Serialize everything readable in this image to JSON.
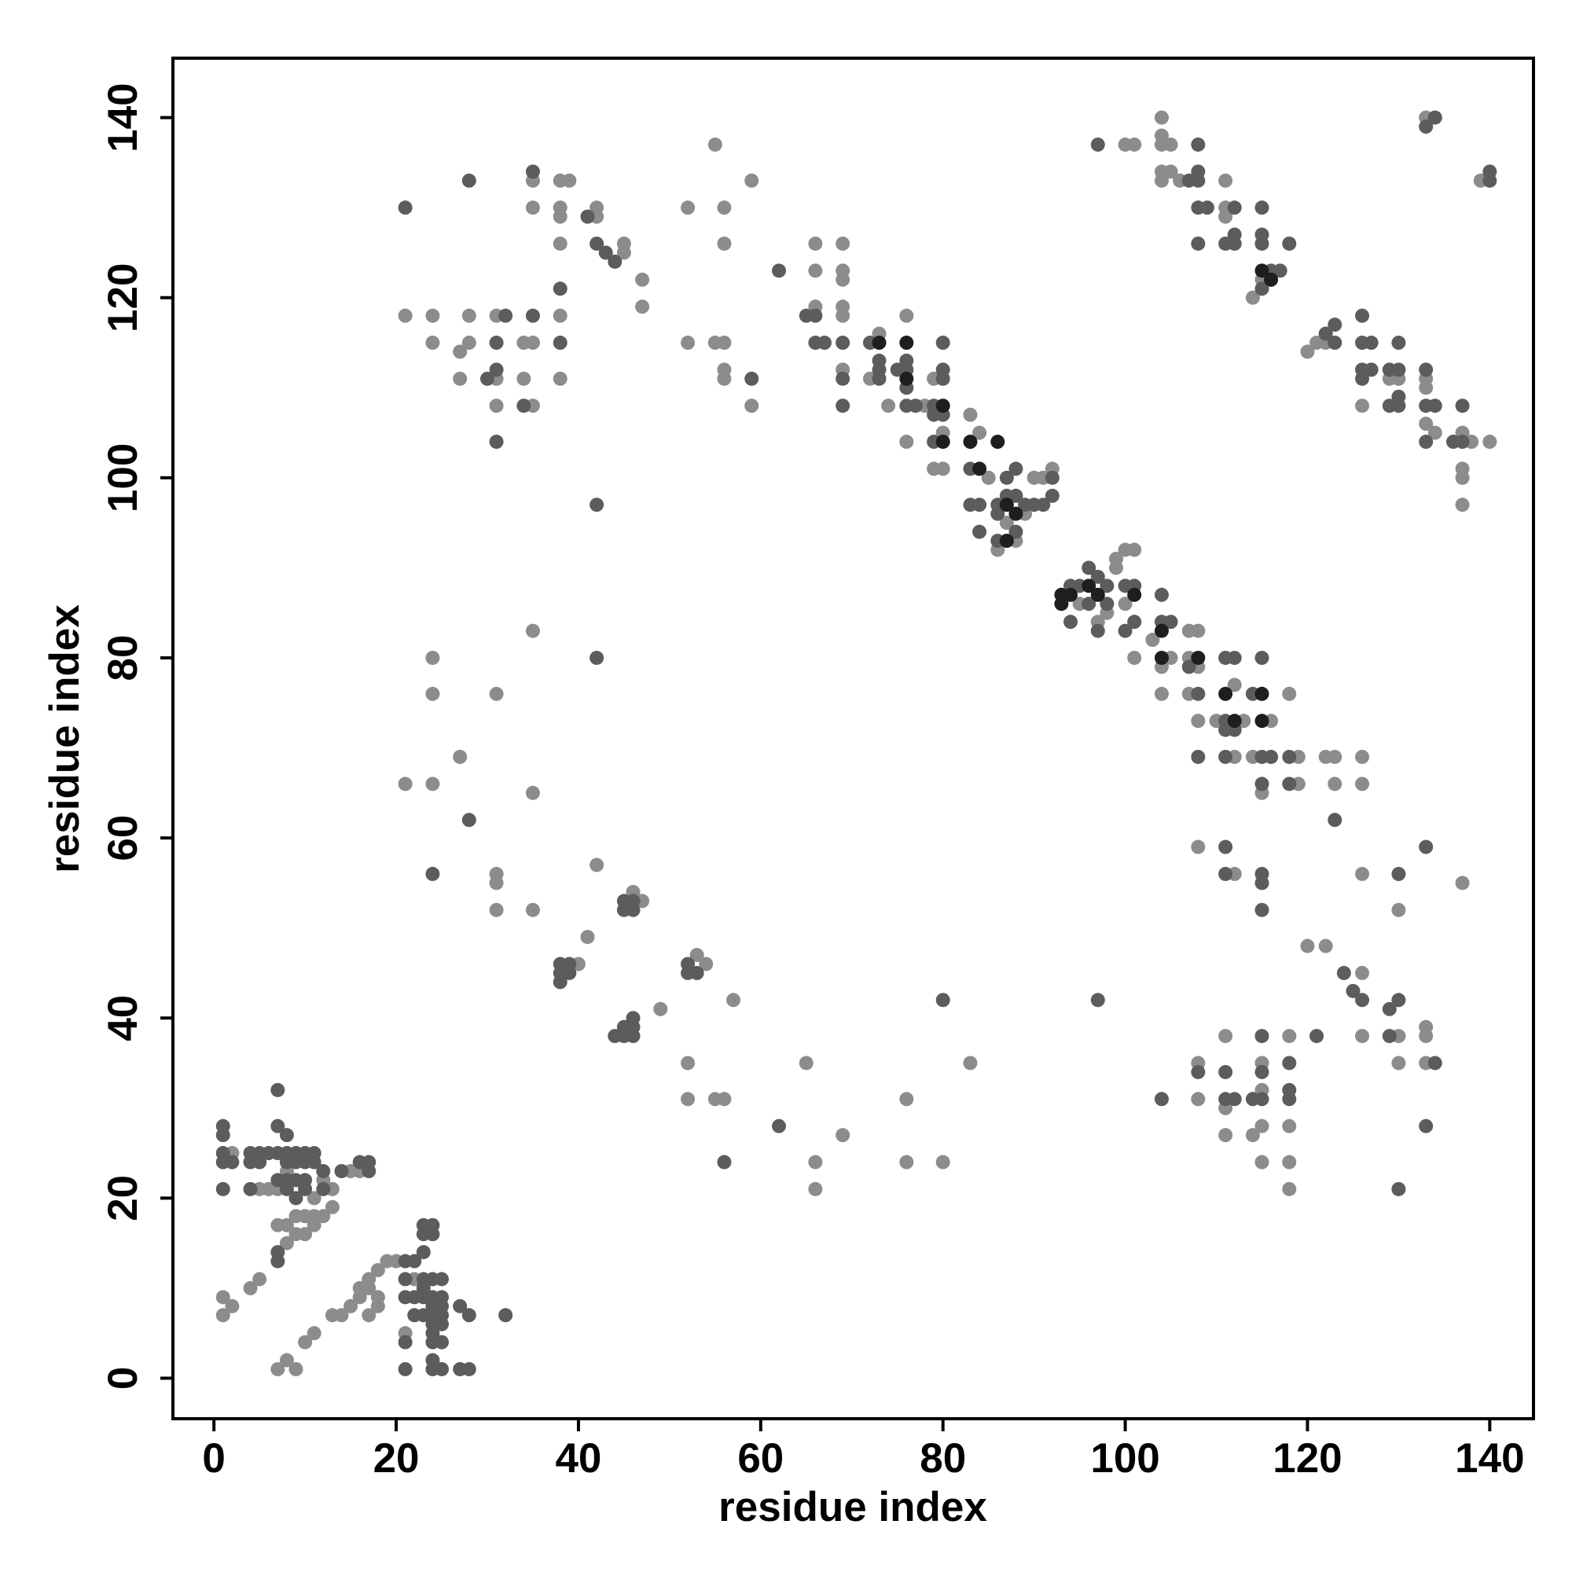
{
  "chart_data": {
    "type": "scatter",
    "xlabel": "residue index",
    "ylabel": "residue index",
    "xlim": [
      -4.5,
      144.8
    ],
    "ylim": [
      -4.5,
      146.6
    ],
    "xticks": [
      0,
      20,
      40,
      60,
      80,
      100,
      120,
      140
    ],
    "yticks": [
      0,
      20,
      40,
      60,
      80,
      100,
      120,
      140
    ],
    "series": [
      {
        "color": "#8c8c8c",
        "x": [
          1,
          1,
          2,
          4,
          5,
          7,
          8,
          9,
          10,
          11,
          13,
          14,
          15,
          16,
          17,
          17,
          18,
          18,
          19,
          20,
          18,
          17,
          16,
          7,
          8,
          8,
          9,
          10,
          11,
          12,
          13,
          9,
          10,
          11,
          7,
          8,
          11,
          12,
          15,
          16,
          22,
          21,
          6,
          5,
          2,
          13,
          40,
          41,
          42,
          46,
          47,
          53,
          54,
          49,
          57,
          52,
          52,
          55,
          56,
          65,
          66,
          66,
          69,
          76,
          76,
          80,
          83,
          21,
          24,
          27,
          24,
          24,
          31,
          35,
          35,
          31,
          31,
          31,
          35,
          21,
          24,
          24,
          27,
          27,
          28,
          28,
          31,
          31,
          31,
          34,
          34,
          35,
          35,
          35,
          35,
          38,
          38,
          38,
          38,
          39,
          38,
          38,
          42,
          42,
          45,
          45,
          47,
          47,
          52,
          52,
          55,
          55,
          56,
          56,
          56,
          56,
          56,
          59,
          59,
          69,
          66,
          66,
          66,
          69,
          69,
          69,
          69,
          69,
          72,
          73,
          74,
          76,
          76,
          78,
          79,
          80,
          79,
          80,
          83,
          84,
          85,
          86,
          87,
          88,
          89,
          90,
          91,
          92,
          95,
          98,
          99,
          100,
          101,
          99,
          100,
          97,
          101,
          103,
          104,
          104,
          105,
          107,
          107,
          108,
          108,
          107,
          108,
          110,
          112,
          112,
          113,
          116,
          114,
          115,
          118,
          119,
          119,
          122,
          123,
          123,
          126,
          126,
          126,
          120,
          122,
          100,
          101,
          104,
          104,
          104,
          104,
          105,
          104,
          105,
          106,
          111,
          111,
          111,
          114,
          115,
          120,
          121,
          122,
          126,
          129,
          130,
          133,
          133,
          133,
          134,
          137,
          137,
          137,
          138,
          140,
          139,
          133,
          137,
          108,
          112,
          108,
          108,
          111,
          111,
          111,
          114,
          115,
          115,
          115,
          118,
          118,
          118,
          118,
          126,
          126,
          130,
          130,
          130,
          133,
          133,
          133,
          137,
          115
        ],
        "values": [
          9,
          7,
          8,
          10,
          11,
          1,
          2,
          1,
          4,
          5,
          7,
          7,
          8,
          9,
          10,
          11,
          9,
          12,
          13,
          13,
          8,
          7,
          10,
          17,
          15,
          17,
          18,
          18,
          18,
          18,
          19,
          16,
          16,
          17,
          21,
          23,
          20,
          22,
          23,
          23,
          11,
          5,
          21,
          21,
          25,
          21,
          46,
          49,
          57,
          54,
          53,
          47,
          46,
          41,
          42,
          35,
          31,
          31,
          31,
          35,
          24,
          21,
          27,
          31,
          24,
          24,
          35,
          66,
          66,
          69,
          80,
          76,
          76,
          83,
          65,
          56,
          55,
          52,
          52,
          118,
          118,
          115,
          114,
          111,
          118,
          115,
          118,
          111,
          108,
          115,
          111,
          108,
          115,
          133,
          130,
          133,
          130,
          129,
          126,
          133,
          118,
          111,
          130,
          129,
          126,
          125,
          122,
          119,
          130,
          115,
          137,
          115,
          130,
          126,
          115,
          112,
          111,
          133,
          108,
          126,
          126,
          123,
          119,
          123,
          122,
          119,
          118,
          112,
          111,
          116,
          108,
          118,
          104,
          108,
          111,
          105,
          101,
          101,
          107,
          105,
          100,
          92,
          95,
          93,
          96,
          100,
          100,
          101,
          86,
          85,
          91,
          92,
          92,
          90,
          86,
          84,
          80,
          82,
          79,
          76,
          80,
          83,
          80,
          83,
          79,
          76,
          73,
          73,
          77,
          69,
          73,
          73,
          69,
          65,
          76,
          69,
          66,
          69,
          69,
          66,
          69,
          66,
          56,
          48,
          48,
          137,
          137,
          140,
          138,
          137,
          134,
          134,
          133,
          137,
          133,
          133,
          130,
          129,
          120,
          122,
          114,
          115,
          115,
          108,
          111,
          111,
          111,
          110,
          106,
          105,
          105,
          101,
          100,
          104,
          104,
          133,
          140,
          97,
          59,
          56,
          35,
          31,
          38,
          30,
          27,
          27,
          28,
          35,
          24,
          38,
          28,
          24,
          21,
          45,
          38,
          38,
          35,
          52,
          39,
          38,
          35,
          55,
          32
        ]
      },
      {
        "color": "#5c5c5c",
        "x": [
          1,
          1,
          1,
          1,
          2,
          1,
          4,
          4,
          5,
          5,
          6,
          7,
          8,
          9,
          10,
          8,
          9,
          10,
          7,
          8,
          7,
          8,
          9,
          10,
          8,
          9,
          10,
          11,
          11,
          12,
          12,
          14,
          16,
          17,
          17,
          7,
          4,
          7,
          7,
          21,
          22,
          23,
          24,
          23,
          24,
          23,
          22,
          23,
          24,
          25,
          23,
          24,
          25,
          22,
          23,
          24,
          25,
          24,
          25,
          24,
          25,
          24,
          21,
          21,
          24,
          24,
          25,
          27,
          28,
          27,
          28,
          32,
          21,
          24,
          25,
          23,
          21,
          38,
          38,
          39,
          39,
          38,
          45,
          45,
          46,
          46,
          52,
          52,
          53,
          44,
          45,
          46,
          46,
          45,
          46,
          42,
          42,
          28,
          24,
          62,
          56,
          80,
          97,
          21,
          28,
          35,
          32,
          31,
          31,
          31,
          35,
          38,
          38,
          41,
          42,
          43,
          44,
          59,
          34,
          30,
          65,
          66,
          66,
          69,
          69,
          69,
          72,
          73,
          73,
          73,
          75,
          76,
          76,
          76,
          77,
          76,
          79,
          79,
          80,
          80,
          80,
          80,
          79,
          84,
          83,
          86,
          86,
          87,
          88,
          88,
          87,
          89,
          90,
          91,
          92,
          92,
          86,
          88,
          84,
          83,
          94,
          95,
          94,
          96,
          97,
          98,
          98,
          97,
          96,
          100,
          101,
          100,
          101,
          104,
          104,
          105,
          107,
          111,
          112,
          112,
          111,
          111,
          114,
          115,
          111,
          108,
          115,
          116,
          115,
          118,
          118,
          123,
          67,
          62,
          108,
          97,
          108,
          108,
          107,
          108,
          108,
          109,
          108,
          111,
          112,
          112,
          112,
          115,
          115,
          115,
          118,
          116,
          117,
          115,
          123,
          123,
          122,
          126,
          126,
          127,
          126,
          126,
          127,
          129,
          129,
          130,
          130,
          130,
          130,
          133,
          133,
          134,
          136,
          137,
          133,
          140,
          140,
          134,
          133,
          137,
          104,
          108,
          111,
          111,
          112,
          115,
          115,
          114,
          115,
          118,
          118,
          118,
          121,
          124,
          125,
          126,
          129,
          129,
          130,
          133,
          134,
          130,
          111,
          115,
          115,
          111,
          130,
          133,
          115
        ],
        "values": [
          28,
          27,
          25,
          24,
          24,
          21,
          24,
          25,
          24,
          25,
          25,
          25,
          25,
          25,
          25,
          24,
          24,
          24,
          28,
          27,
          22,
          22,
          22,
          22,
          21,
          20,
          21,
          25,
          24,
          23,
          21,
          23,
          24,
          24,
          23,
          32,
          21,
          14,
          13,
          13,
          13,
          17,
          17,
          16,
          16,
          14,
          9,
          9,
          9,
          9,
          11,
          11,
          11,
          7,
          7,
          7,
          7,
          6,
          6,
          5,
          4,
          4,
          4,
          1,
          2,
          1,
          1,
          1,
          1,
          8,
          7,
          7,
          9,
          8,
          8,
          10,
          11,
          46,
          45,
          45,
          46,
          44,
          53,
          52,
          52,
          53,
          46,
          45,
          45,
          38,
          39,
          39,
          38,
          38,
          40,
          97,
          80,
          62,
          56,
          28,
          24,
          42,
          42,
          130,
          133,
          134,
          118,
          115,
          112,
          104,
          118,
          121,
          115,
          129,
          126,
          125,
          124,
          111,
          108,
          111,
          118,
          118,
          115,
          115,
          111,
          108,
          115,
          113,
          112,
          111,
          112,
          113,
          110,
          108,
          108,
          112,
          108,
          107,
          112,
          111,
          115,
          107,
          104,
          97,
          97,
          97,
          96,
          100,
          101,
          98,
          98,
          97,
          97,
          97,
          98,
          100,
          93,
          94,
          94,
          101,
          88,
          88,
          84,
          86,
          89,
          88,
          86,
          83,
          90,
          88,
          84,
          83,
          88,
          87,
          84,
          84,
          79,
          80,
          80,
          72,
          73,
          72,
          76,
          80,
          69,
          69,
          69,
          69,
          66,
          69,
          66,
          62,
          115,
          123,
          76,
          137,
          137,
          134,
          133,
          133,
          130,
          130,
          126,
          126,
          130,
          127,
          126,
          130,
          127,
          126,
          126,
          123,
          123,
          121,
          117,
          115,
          116,
          118,
          115,
          115,
          112,
          111,
          112,
          112,
          108,
          112,
          109,
          108,
          115,
          112,
          108,
          108,
          104,
          108,
          104,
          134,
          133,
          140,
          139,
          104,
          31,
          34,
          34,
          31,
          31,
          38,
          34,
          31,
          31,
          32,
          31,
          35,
          38,
          45,
          43,
          42,
          41,
          38,
          42,
          28,
          35,
          21,
          59,
          56,
          55,
          56,
          56,
          59,
          52
        ]
      },
      {
        "color": "#1e1e1e",
        "x": [
          76,
          76,
          80,
          80,
          83,
          84,
          86,
          87,
          88,
          87,
          93,
          94,
          96,
          97,
          101,
          104,
          104,
          108,
          111,
          112,
          115,
          115,
          73,
          93,
          115,
          116
        ],
        "values": [
          115,
          111,
          108,
          104,
          104,
          101,
          104,
          97,
          96,
          93,
          87,
          87,
          88,
          87,
          87,
          83,
          80,
          80,
          76,
          73,
          76,
          73,
          115,
          86,
          123,
          122
        ]
      }
    ]
  }
}
